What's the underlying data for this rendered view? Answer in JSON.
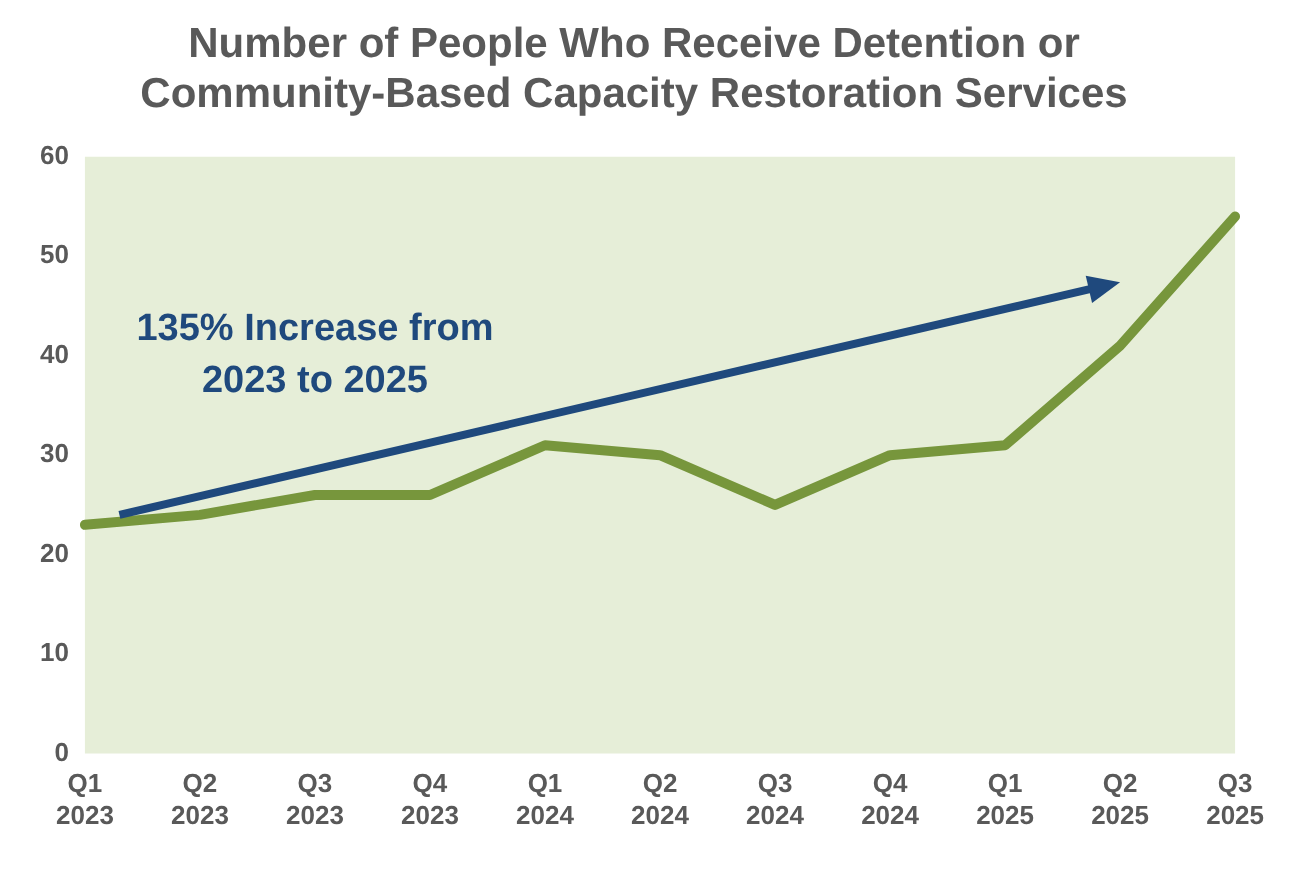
{
  "chart_data": {
    "type": "line",
    "title": "Number of People Who Receive Detention or Community-Based Capacity Restoration Services",
    "categories": [
      "Q1 2023",
      "Q2 2023",
      "Q3 2023",
      "Q4 2023",
      "Q1 2024",
      "Q2 2024",
      "Q3 2024",
      "Q4 2024",
      "Q1 2025",
      "Q2 2025",
      "Q3 2025"
    ],
    "series": [
      {
        "color": "#77963c",
        "values": [
          23,
          24,
          26,
          26,
          31,
          30,
          25,
          30,
          31,
          41,
          54
        ]
      }
    ],
    "ylim": [
      0,
      60
    ],
    "yticks": [
      0,
      10,
      20,
      30,
      40,
      50,
      60
    ],
    "grid": false,
    "legend": false,
    "marker": "none",
    "line_style": "solid",
    "annotations": [
      "135% Increase from 2023 to 2025"
    ]
  }
}
